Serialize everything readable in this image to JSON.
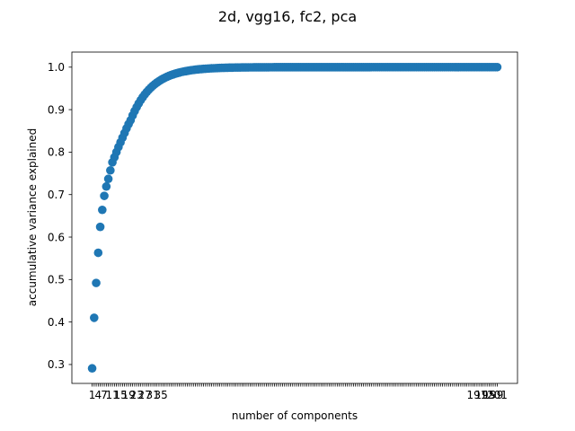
{
  "chart_data": {
    "type": "scatter",
    "title": "2d, vgg16, fc2, pca",
    "xlabel": "number of components",
    "ylabel": "accumulative variance explained",
    "n_points": 201,
    "x_first": 1,
    "x_last": 201,
    "xlim": [
      -9,
      211
    ],
    "ylim": [
      0.2555,
      1.0355
    ],
    "yticks": [
      0.3,
      0.4,
      0.5,
      0.6,
      0.7,
      0.8,
      0.9,
      1.0
    ],
    "ytick_labels": [
      "0.3",
      "0.4",
      "0.5",
      "0.6",
      "0.7",
      "0.8",
      "0.9",
      "1.0"
    ],
    "xticks_visible": [
      "1",
      "4",
      "7",
      "11",
      "15",
      "19",
      "23",
      "27",
      "31",
      "35",
      "191",
      "195",
      "199",
      "201"
    ],
    "x_head": [
      1,
      2,
      3,
      4,
      5,
      6,
      7,
      8,
      9,
      10,
      11,
      12,
      13,
      14,
      15,
      16,
      17,
      18,
      19,
      20
    ],
    "y_head": [
      0.291,
      0.41,
      0.492,
      0.563,
      0.624,
      0.664,
      0.697,
      0.719,
      0.737,
      0.757,
      0.776,
      0.788,
      0.8,
      0.812,
      0.823,
      0.834,
      0.845,
      0.856,
      0.866,
      0.875
    ],
    "y_plateau": 1.0,
    "grid": false,
    "marker_color": "#1f77b4"
  }
}
